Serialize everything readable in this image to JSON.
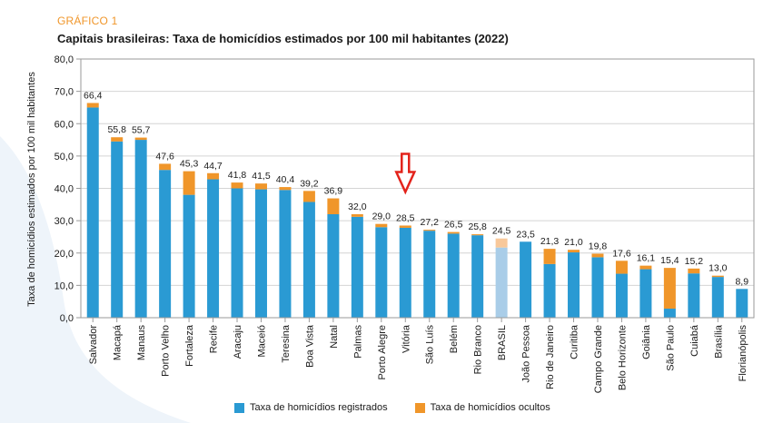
{
  "header": {
    "kicker": "GRÁFICO 1",
    "title": "Capitais brasileiras: Taxa de homicídios estimados por 100 mil habitantes (2022)"
  },
  "colors": {
    "registrados": "#2a9ad3",
    "ocultos": "#f0962a",
    "brasil_registrados": "#a9cde8",
    "brasil_ocultos": "#f8c89a",
    "arrow": "#e3231b"
  },
  "chart_data": {
    "type": "bar",
    "stacked": true,
    "ylabel": "Taxa de homicídios estimados por 100 mil habitantes",
    "ylim": [
      0,
      80
    ],
    "yticks": [
      "0,0",
      "10,0",
      "20,0",
      "30,0",
      "40,0",
      "50,0",
      "60,0",
      "70,0",
      "80,0"
    ],
    "grid": true,
    "legend_position": "bottom",
    "highlight_category": "BRASIL",
    "annotation": {
      "type": "down-arrow",
      "category": "Vitória"
    },
    "categories": [
      "Salvador",
      "Macapá",
      "Manaus",
      "Porto Velho",
      "Fortaleza",
      "Recife",
      "Aracaju",
      "Maceió",
      "Teresina",
      "Boa Vista",
      "Natal",
      "Palmas",
      "Porto Alegre",
      "Vitória",
      "São Luís",
      "Belém",
      "Rio Branco",
      "BRASIL",
      "João Pessoa",
      "Rio de Janeiro",
      "Curitiba",
      "Campo Grande",
      "Belo Horizonte",
      "Goiânia",
      "São Paulo",
      "Cuiabá",
      "Brasília",
      "Florianópolis"
    ],
    "total_labels": [
      "66,4",
      "55,8",
      "55,7",
      "47,6",
      "45,3",
      "44,7",
      "41,8",
      "41,5",
      "40,4",
      "39,2",
      "36,9",
      "32,0",
      "29,0",
      "28,5",
      "27,2",
      "26,5",
      "25,8",
      "24,5",
      "23,5",
      "21,3",
      "21,0",
      "19,8",
      "17,6",
      "16,1",
      "15,4",
      "15,2",
      "13,0",
      "8,9"
    ],
    "series": [
      {
        "name": "Taxa de homicídios registrados",
        "values": [
          65.0,
          54.5,
          55.0,
          45.7,
          38.0,
          42.8,
          40.0,
          39.7,
          39.5,
          35.8,
          32.0,
          31.2,
          28.0,
          27.8,
          26.9,
          26.0,
          25.5,
          21.7,
          23.5,
          16.6,
          20.2,
          18.7,
          13.6,
          15.0,
          2.8,
          13.7,
          12.6,
          8.9
        ]
      },
      {
        "name": "Taxa de homicídios ocultos",
        "values": [
          1.4,
          1.3,
          0.7,
          1.9,
          7.3,
          1.9,
          1.8,
          1.8,
          0.9,
          3.4,
          4.9,
          0.8,
          1.0,
          0.7,
          0.3,
          0.5,
          0.3,
          2.8,
          0.0,
          4.7,
          0.8,
          1.1,
          4.0,
          1.1,
          12.6,
          1.5,
          0.4,
          0.0
        ]
      }
    ]
  }
}
